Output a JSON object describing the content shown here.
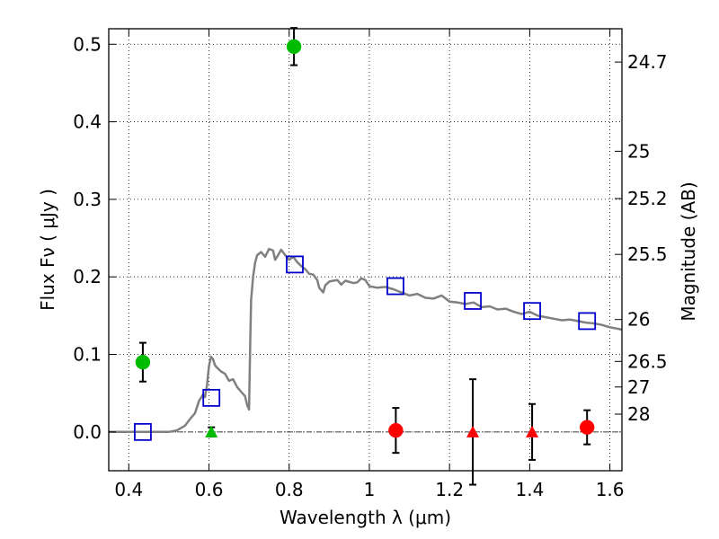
{
  "chart_data": {
    "type": "scatter",
    "xlabel": "Wavelength  λ (μm)",
    "ylabel": "Flux  Fν  ( μJy )",
    "ylabel_right": "Magnitude (AB)",
    "xlim": [
      0.35,
      1.63
    ],
    "ylim": [
      -0.05,
      0.52
    ],
    "grid": true,
    "x_ticks": [
      0.4,
      0.6,
      0.8,
      1.0,
      1.2,
      1.4,
      1.6
    ],
    "x_tick_labels": [
      "0.4",
      "0.6",
      "0.8",
      "1",
      "1.2",
      "1.4",
      "1.6"
    ],
    "y_ticks": [
      0.0,
      0.1,
      0.2,
      0.3,
      0.4,
      0.5
    ],
    "y_tick_labels": [
      "0.0",
      "0.1",
      "0.2",
      "0.3",
      "0.4",
      "0.5"
    ],
    "right_ticks": [
      {
        "label": "24.7",
        "flux": 0.477
      },
      {
        "label": "25",
        "flux": 0.362
      },
      {
        "label": "25.2",
        "flux": 0.301
      },
      {
        "label": "25.5",
        "flux": 0.229
      },
      {
        "label": "26",
        "flux": 0.145
      },
      {
        "label": "26.5",
        "flux": 0.091
      },
      {
        "label": "27",
        "flux": 0.058
      },
      {
        "label": "28",
        "flux": 0.023
      }
    ],
    "zero_line": 0.0,
    "colors": {
      "model": "#808080",
      "green": "#00bb00",
      "red": "#ff0000",
      "blue": "#0000cc",
      "errorbar": "#000000"
    },
    "series": [
      {
        "type": "line",
        "points": [
          [
            0.35,
            0.0
          ],
          [
            0.5,
            0.0
          ],
          [
            0.52,
            0.002
          ],
          [
            0.54,
            0.008
          ],
          [
            0.555,
            0.018
          ],
          [
            0.565,
            0.024
          ],
          [
            0.575,
            0.04
          ],
          [
            0.585,
            0.048
          ],
          [
            0.59,
            0.045
          ],
          [
            0.595,
            0.06
          ],
          [
            0.6,
            0.085
          ],
          [
            0.605,
            0.097
          ],
          [
            0.61,
            0.094
          ],
          [
            0.615,
            0.086
          ],
          [
            0.62,
            0.083
          ],
          [
            0.63,
            0.078
          ],
          [
            0.64,
            0.075
          ],
          [
            0.65,
            0.066
          ],
          [
            0.66,
            0.068
          ],
          [
            0.67,
            0.058
          ],
          [
            0.68,
            0.052
          ],
          [
            0.69,
            0.046
          ],
          [
            0.695,
            0.035
          ],
          [
            0.7,
            0.029
          ],
          [
            0.703,
            0.12
          ],
          [
            0.705,
            0.17
          ],
          [
            0.71,
            0.2
          ],
          [
            0.715,
            0.218
          ],
          [
            0.72,
            0.228
          ],
          [
            0.73,
            0.232
          ],
          [
            0.74,
            0.226
          ],
          [
            0.75,
            0.236
          ],
          [
            0.76,
            0.234
          ],
          [
            0.765,
            0.222
          ],
          [
            0.77,
            0.226
          ],
          [
            0.78,
            0.235
          ],
          [
            0.79,
            0.228
          ],
          [
            0.8,
            0.222
          ],
          [
            0.81,
            0.226
          ],
          [
            0.82,
            0.219
          ],
          [
            0.83,
            0.214
          ],
          [
            0.84,
            0.21
          ],
          [
            0.85,
            0.204
          ],
          [
            0.86,
            0.203
          ],
          [
            0.87,
            0.196
          ],
          [
            0.875,
            0.186
          ],
          [
            0.88,
            0.183
          ],
          [
            0.885,
            0.18
          ],
          [
            0.89,
            0.189
          ],
          [
            0.9,
            0.194
          ],
          [
            0.92,
            0.196
          ],
          [
            0.93,
            0.19
          ],
          [
            0.94,
            0.195
          ],
          [
            0.96,
            0.192
          ],
          [
            0.97,
            0.193
          ],
          [
            0.98,
            0.198
          ],
          [
            0.99,
            0.196
          ],
          [
            1.0,
            0.188
          ],
          [
            1.02,
            0.186
          ],
          [
            1.04,
            0.187
          ],
          [
            1.06,
            0.184
          ],
          [
            1.08,
            0.18
          ],
          [
            1.1,
            0.176
          ],
          [
            1.12,
            0.178
          ],
          [
            1.14,
            0.173
          ],
          [
            1.16,
            0.172
          ],
          [
            1.18,
            0.176
          ],
          [
            1.2,
            0.168
          ],
          [
            1.22,
            0.167
          ],
          [
            1.24,
            0.165
          ],
          [
            1.26,
            0.167
          ],
          [
            1.28,
            0.161
          ],
          [
            1.3,
            0.162
          ],
          [
            1.32,
            0.158
          ],
          [
            1.34,
            0.159
          ],
          [
            1.36,
            0.155
          ],
          [
            1.38,
            0.152
          ],
          [
            1.4,
            0.155
          ],
          [
            1.42,
            0.15
          ],
          [
            1.44,
            0.148
          ],
          [
            1.46,
            0.146
          ],
          [
            1.48,
            0.144
          ],
          [
            1.5,
            0.145
          ],
          [
            1.52,
            0.143
          ],
          [
            1.54,
            0.141
          ],
          [
            1.56,
            0.14
          ],
          [
            1.58,
            0.138
          ],
          [
            1.6,
            0.135
          ],
          [
            1.63,
            0.132
          ]
        ]
      },
      {
        "type": "errorbar-points",
        "color": "green",
        "marker": "circle",
        "points": [
          {
            "x": 0.435,
            "y": 0.09,
            "err": 0.025
          },
          {
            "x": 0.812,
            "y": 0.497,
            "err": 0.024
          }
        ]
      },
      {
        "type": "errorbar-points",
        "color": "green",
        "marker": "triangle",
        "points": [
          {
            "x": 0.606,
            "y": 0.0,
            "err": 0.006
          }
        ]
      },
      {
        "type": "errorbar-points",
        "color": "red",
        "marker": "circle",
        "points": [
          {
            "x": 1.066,
            "y": 0.002,
            "err": 0.029
          },
          {
            "x": 1.543,
            "y": 0.006,
            "err": 0.022
          }
        ]
      },
      {
        "type": "errorbar-points",
        "color": "red",
        "marker": "triangle",
        "points": [
          {
            "x": 1.258,
            "y": 0.0,
            "err": 0.068
          },
          {
            "x": 1.406,
            "y": 0.0,
            "err": 0.036
          }
        ]
      },
      {
        "type": "points",
        "color": "blue",
        "marker": "square",
        "points": [
          {
            "x": 0.435,
            "y": 0.0
          },
          {
            "x": 0.606,
            "y": 0.044
          },
          {
            "x": 0.814,
            "y": 0.216
          },
          {
            "x": 1.065,
            "y": 0.188
          },
          {
            "x": 1.258,
            "y": 0.169
          },
          {
            "x": 1.406,
            "y": 0.156
          },
          {
            "x": 1.543,
            "y": 0.143
          }
        ]
      }
    ]
  }
}
